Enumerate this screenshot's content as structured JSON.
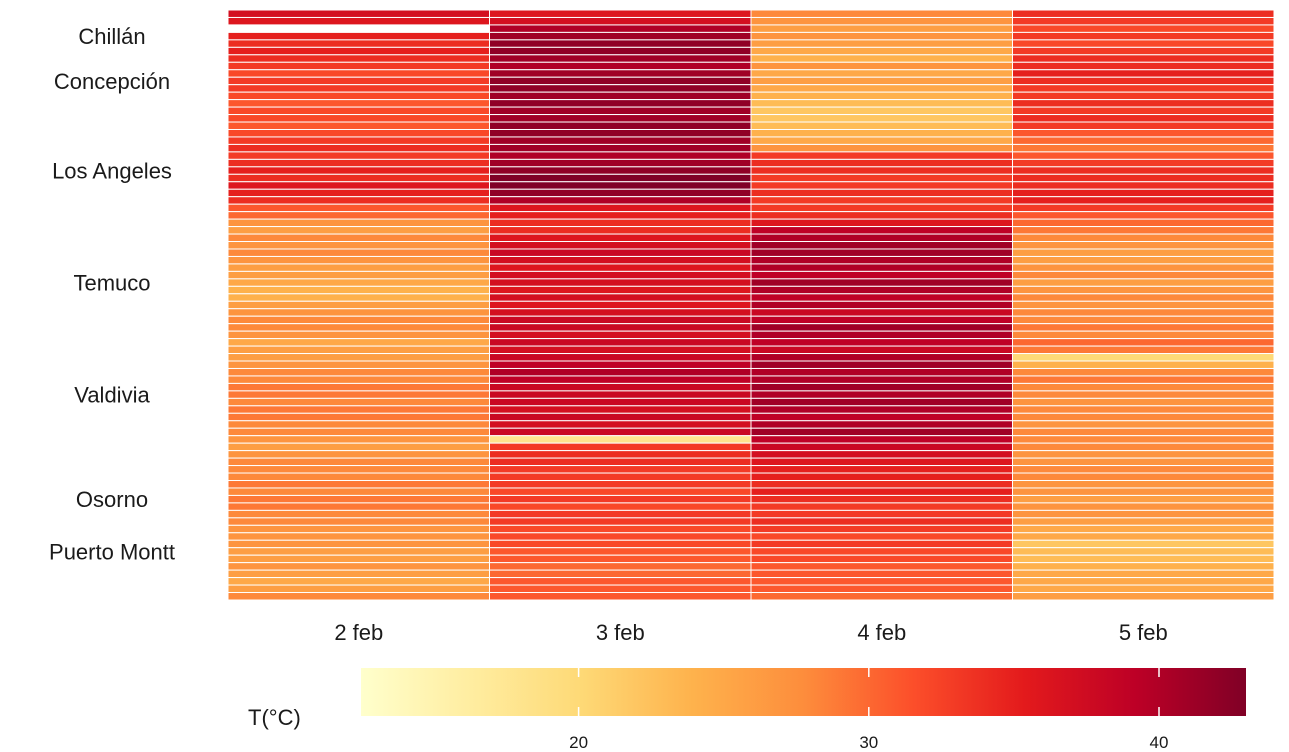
{
  "chart_data": {
    "type": "heatmap",
    "title": "",
    "xlabel": "",
    "ylabel": "",
    "x_categories": [
      "2 feb",
      "3 feb",
      "4 feb",
      "5 feb"
    ],
    "y_labels": [
      {
        "label": "Chillán",
        "row": 3
      },
      {
        "label": "Concepción",
        "row": 9
      },
      {
        "label": "Los Angeles",
        "row": 21
      },
      {
        "label": "Temuco",
        "row": 36
      },
      {
        "label": "Valdivia",
        "row": 51
      },
      {
        "label": "Osorno",
        "row": 65
      },
      {
        "label": "Puerto Montt",
        "row": 72
      }
    ],
    "missing": [
      {
        "row": 2,
        "col": 0
      }
    ],
    "columns": [
      [
        37,
        36,
        null,
        35,
        34,
        35,
        34,
        33,
        32,
        33,
        33,
        32,
        31,
        32,
        32,
        31,
        32,
        33,
        34,
        33,
        34,
        35,
        34,
        36,
        35,
        34,
        31,
        30,
        27,
        26,
        28,
        27,
        28,
        27,
        26,
        26,
        25,
        24,
        24,
        26,
        27,
        28,
        28,
        27,
        25,
        26,
        26,
        27,
        28,
        28,
        29,
        29,
        28,
        29,
        29,
        28,
        28,
        27,
        26,
        27,
        28,
        28,
        28,
        29,
        28,
        29,
        29,
        28,
        28,
        27,
        27,
        27,
        26,
        26,
        27,
        26,
        25,
        26,
        28
      ],
      [
        36,
        37,
        40,
        41,
        42,
        42,
        41,
        40,
        41,
        42,
        42,
        41,
        42,
        41,
        41,
        42,
        42,
        41,
        41,
        40,
        41,
        42,
        43,
        43,
        42,
        40,
        36,
        35,
        34,
        34,
        36,
        37,
        38,
        37,
        36,
        37,
        37,
        36,
        37,
        36,
        37,
        38,
        38,
        37,
        38,
        37,
        38,
        39,
        40,
        39,
        38,
        38,
        38,
        37,
        38,
        37,
        38,
        18,
        33,
        34,
        34,
        33,
        33,
        33,
        32,
        33,
        32,
        33,
        33,
        32,
        32,
        32,
        31,
        31,
        30,
        30,
        31,
        31,
        31
      ],
      [
        28,
        27,
        26,
        27,
        26,
        25,
        24,
        27,
        25,
        26,
        25,
        24,
        23,
        22,
        22,
        23,
        24,
        25,
        27,
        33,
        34,
        34,
        33,
        33,
        34,
        33,
        33,
        34,
        36,
        39,
        40,
        41,
        41,
        40,
        40,
        39,
        41,
        40,
        39,
        40,
        38,
        39,
        41,
        40,
        39,
        38,
        40,
        41,
        40,
        40,
        41,
        40,
        41,
        40,
        39,
        40,
        41,
        39,
        38,
        37,
        36,
        35,
        35,
        34,
        35,
        34,
        33,
        33,
        34,
        33,
        32,
        33,
        32,
        32,
        31,
        31,
        31,
        31,
        30
      ],
      [
        34,
        33,
        32,
        33,
        32,
        33,
        34,
        34,
        35,
        34,
        33,
        33,
        34,
        33,
        34,
        33,
        31,
        30,
        29,
        31,
        33,
        34,
        34,
        34,
        35,
        35,
        33,
        31,
        30,
        29,
        28,
        27,
        26,
        26,
        27,
        28,
        26,
        27,
        28,
        27,
        28,
        28,
        29,
        28,
        30,
        29,
        20,
        24,
        28,
        29,
        28,
        28,
        27,
        28,
        28,
        27,
        28,
        28,
        28,
        27,
        27,
        28,
        28,
        27,
        27,
        26,
        27,
        27,
        26,
        25,
        25,
        22,
        23,
        23,
        24,
        25,
        25,
        25,
        26
      ]
    ],
    "colorbar": {
      "label": "T(°C)",
      "min": 12.5,
      "max": 43,
      "ticks": [
        20,
        30,
        40
      ],
      "colors": [
        "#ffffcc",
        "#ffeda0",
        "#fed976",
        "#feb24c",
        "#fd8d3c",
        "#fc4e2a",
        "#e31a1c",
        "#bd0026",
        "#800026"
      ],
      "placement": "bottom"
    }
  }
}
